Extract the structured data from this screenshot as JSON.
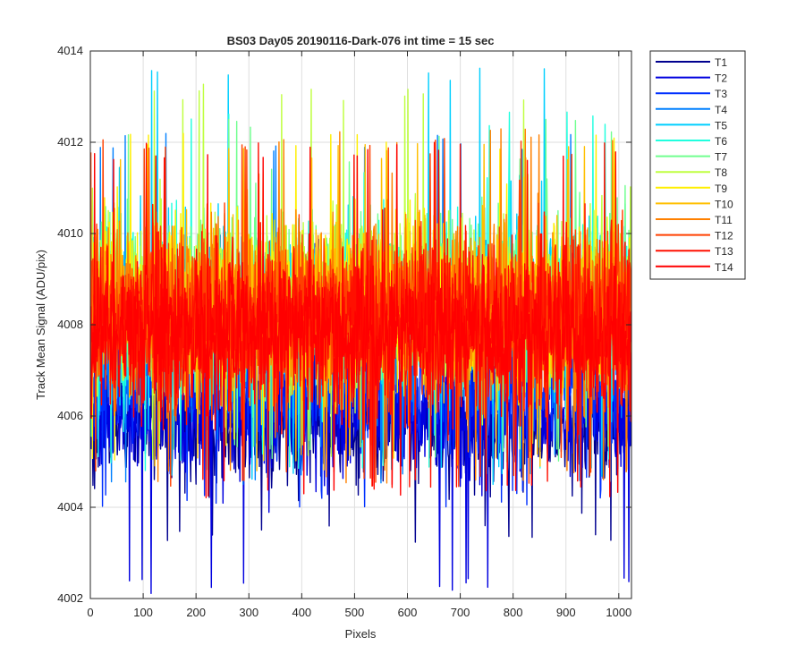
{
  "chart_data": {
    "type": "line",
    "title": "BS03 Day05 20190116-Dark-076 int time = 15 sec",
    "xlabel": "Pixels",
    "ylabel": "Track Mean Signal (ADU/pix)",
    "xlim": [
      0,
      1024
    ],
    "ylim": [
      4002,
      4014
    ],
    "xticks": [
      0,
      100,
      200,
      300,
      400,
      500,
      600,
      700,
      800,
      900,
      1000
    ],
    "yticks": [
      4002,
      4004,
      4006,
      4008,
      4010,
      4012,
      4014
    ],
    "grid": true,
    "legend_position": "outside-top-right",
    "colormap": "jet",
    "n_points_per_series": 1024,
    "series": [
      {
        "name": "T1",
        "color": "#00008f",
        "mean": 4005.8,
        "noise": 0.62,
        "min": 4003.2,
        "max": 4008.5
      },
      {
        "name": "T2",
        "color": "#0000df",
        "mean": 4006.0,
        "noise": 0.62,
        "min": 4002.1,
        "max": 4009.0
      },
      {
        "name": "T3",
        "color": "#0030ff",
        "mean": 4006.8,
        "noise": 0.7,
        "min": 4004.0,
        "max": 4010.0
      },
      {
        "name": "T4",
        "color": "#0080ff",
        "mean": 4007.8,
        "noise": 0.85,
        "min": 4004.5,
        "max": 4012.2
      },
      {
        "name": "T5",
        "color": "#00cfff",
        "mean": 4008.2,
        "noise": 0.95,
        "min": 4004.5,
        "max": 4013.7
      },
      {
        "name": "T6",
        "color": "#20ffdf",
        "mean": 4008.4,
        "noise": 0.95,
        "min": 4004.8,
        "max": 4012.7
      },
      {
        "name": "T7",
        "color": "#70ff8f",
        "mean": 4008.6,
        "noise": 0.95,
        "min": 4005.0,
        "max": 4012.5
      },
      {
        "name": "T8",
        "color": "#bfff40",
        "mean": 4008.5,
        "noise": 0.95,
        "min": 4005.0,
        "max": 4013.3
      },
      {
        "name": "T9",
        "color": "#ffef00",
        "mean": 4008.4,
        "noise": 0.95,
        "min": 4005.0,
        "max": 4012.2
      },
      {
        "name": "T10",
        "color": "#ffbf00",
        "mean": 4008.3,
        "noise": 0.9,
        "min": 4004.8,
        "max": 4012.0
      },
      {
        "name": "T11",
        "color": "#ff8000",
        "mean": 4008.3,
        "noise": 0.9,
        "min": 4004.5,
        "max": 4012.3
      },
      {
        "name": "T12",
        "color": "#ff4000",
        "mean": 4008.2,
        "noise": 0.9,
        "min": 4004.4,
        "max": 4012.1
      },
      {
        "name": "T13",
        "color": "#ff1000",
        "mean": 4008.0,
        "noise": 0.85,
        "min": 4004.3,
        "max": 4012.0
      },
      {
        "name": "T14",
        "color": "#ff0000",
        "mean": 4007.8,
        "noise": 0.8,
        "min": 4004.2,
        "max": 4012.0
      }
    ]
  }
}
